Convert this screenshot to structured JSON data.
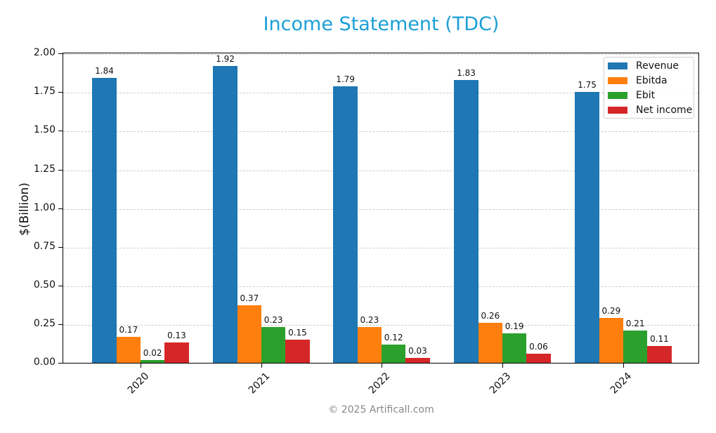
{
  "title": "Income Statement (TDC)",
  "ylabel": "$(Billion)",
  "watermark": "© 2025 Artificall.com",
  "colors": {
    "title": "#1a9fd6",
    "Revenue": "#1f77b4",
    "Ebitda": "#ff7f0e",
    "Ebit": "#2ca02c",
    "Net income": "#d62728"
  },
  "legend": [
    {
      "label": "Revenue",
      "color": "#1f77b4"
    },
    {
      "label": "Ebitda",
      "color": "#ff7f0e"
    },
    {
      "label": "Ebit",
      "color": "#2ca02c"
    },
    {
      "label": "Net income",
      "color": "#d62728"
    }
  ],
  "yticks": [
    "0.00",
    "0.25",
    "0.50",
    "0.75",
    "1.00",
    "1.25",
    "1.50",
    "1.75",
    "2.00"
  ],
  "chart_data": {
    "type": "bar",
    "title": "Income Statement (TDC)",
    "xlabel": "",
    "ylabel": "$(Billion)",
    "categories": [
      "2020",
      "2021",
      "2022",
      "2023",
      "2024"
    ],
    "series": [
      {
        "name": "Revenue",
        "values": [
          1.84,
          1.92,
          1.79,
          1.83,
          1.75
        ]
      },
      {
        "name": "Ebitda",
        "values": [
          0.17,
          0.37,
          0.23,
          0.26,
          0.29
        ]
      },
      {
        "name": "Ebit",
        "values": [
          0.02,
          0.23,
          0.12,
          0.19,
          0.21
        ]
      },
      {
        "name": "Net income",
        "values": [
          0.13,
          0.15,
          0.03,
          0.06,
          0.11
        ]
      }
    ],
    "ylim": [
      0,
      2.01
    ],
    "yticks": [
      0,
      0.25,
      0.5,
      0.75,
      1.0,
      1.25,
      1.5,
      1.75,
      2.0
    ],
    "grid": "y-dashed",
    "legend_position": "upper right",
    "data_labels": true
  }
}
